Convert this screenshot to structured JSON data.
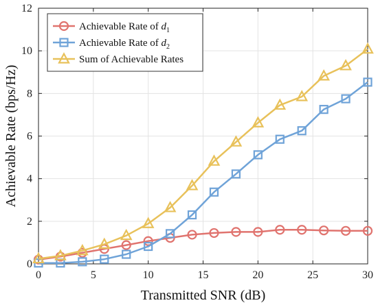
{
  "chart_data": {
    "type": "line",
    "xlabel": "Transmitted SNR (dB)",
    "ylabel": "Achievable Rate (bps/Hz)",
    "xlim": [
      0,
      30
    ],
    "ylim": [
      0,
      12
    ],
    "xticks": [
      0,
      5,
      10,
      15,
      20,
      25,
      30
    ],
    "yticks": [
      0,
      2,
      4,
      6,
      8,
      10,
      12
    ],
    "grid": true,
    "legend_position": "top-left",
    "x": [
      0,
      2,
      4,
      6,
      8,
      10,
      12,
      14,
      16,
      18,
      20,
      22,
      24,
      26,
      28,
      30
    ],
    "series": [
      {
        "name": "Achievable Rate of d1",
        "legend_main": "Achievable Rate of ",
        "legend_var": "d",
        "legend_sub": "1",
        "marker": "circle",
        "color": "#E0736E",
        "values": [
          0.2,
          0.34,
          0.52,
          0.7,
          0.88,
          1.07,
          1.22,
          1.37,
          1.45,
          1.5,
          1.5,
          1.6,
          1.6,
          1.57,
          1.55,
          1.55
        ]
      },
      {
        "name": "Achievable Rate of d2",
        "legend_main": "Achievable Rate of ",
        "legend_var": "d",
        "legend_sub": "2",
        "marker": "square",
        "color": "#6FA3D8",
        "values": [
          0.04,
          0.04,
          0.1,
          0.22,
          0.45,
          0.82,
          1.42,
          2.3,
          3.37,
          4.22,
          5.12,
          5.85,
          6.25,
          7.25,
          7.75,
          8.53
        ]
      },
      {
        "name": "Sum of Achievable Rates",
        "legend_main": "Sum of Achievable Rates",
        "legend_var": "",
        "legend_sub": "",
        "marker": "triangle",
        "color": "#E8C15A",
        "values": [
          0.24,
          0.38,
          0.62,
          0.92,
          1.33,
          1.89,
          2.64,
          3.67,
          4.82,
          5.72,
          6.62,
          7.45,
          7.85,
          8.82,
          9.3,
          10.08
        ]
      }
    ]
  }
}
